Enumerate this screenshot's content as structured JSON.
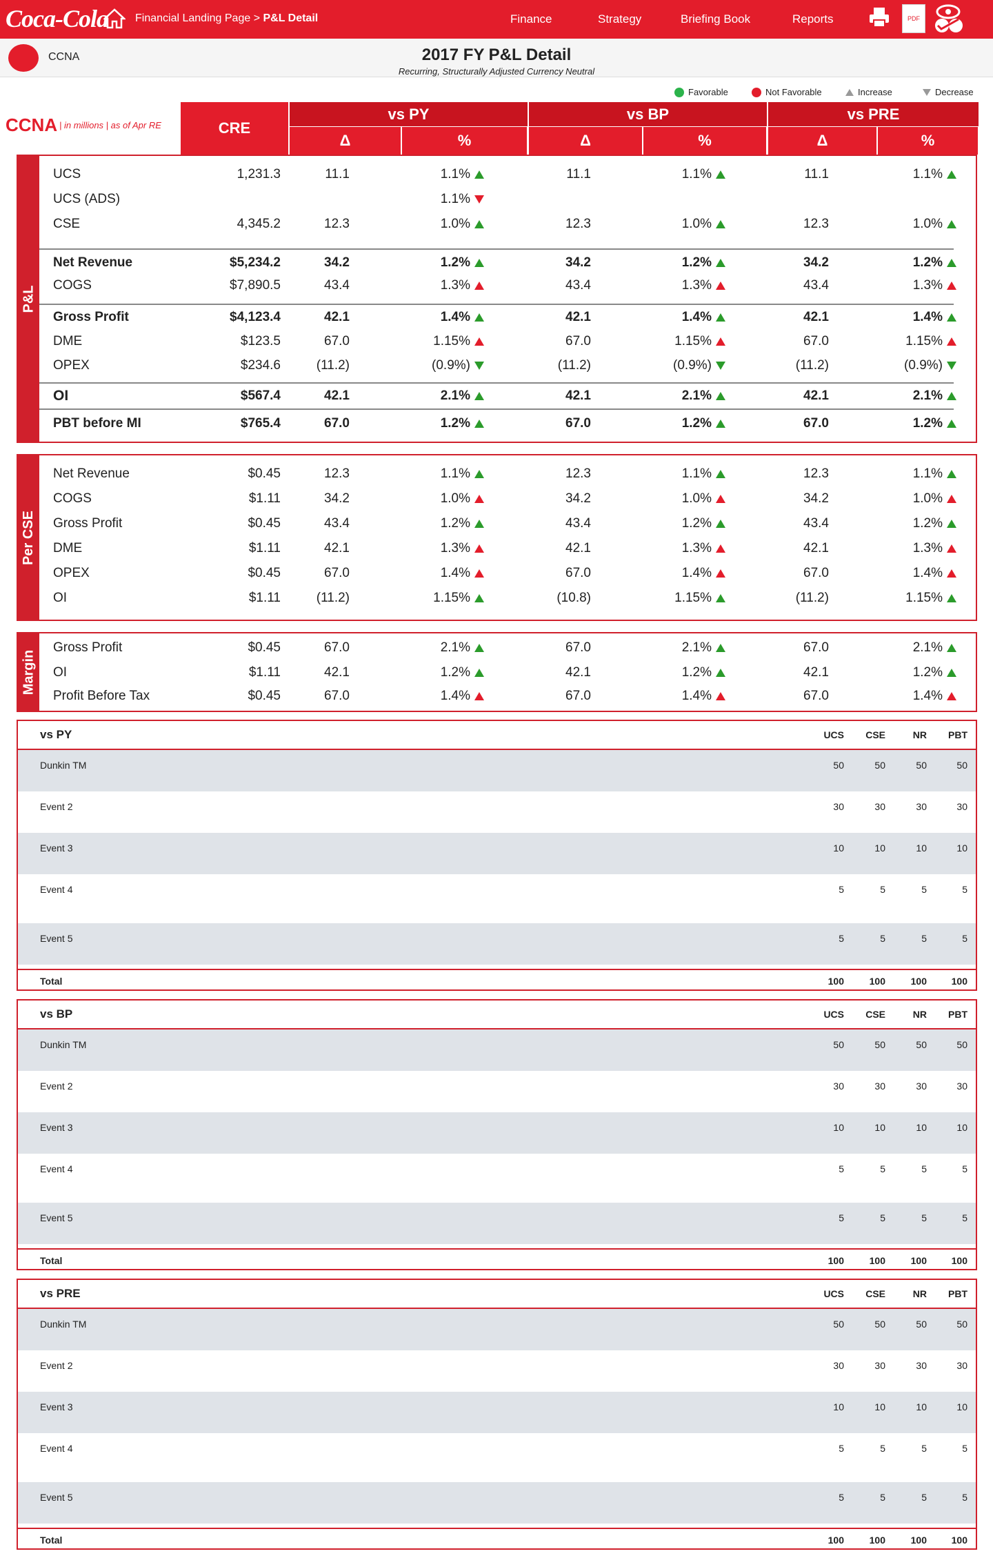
{
  "nav": {
    "brand": "Coca-Cola",
    "crumb_link": "Financial Landing Page",
    "crumb_sep": ">",
    "crumb_current": "P&L Detail",
    "menu": [
      "Finance",
      "Strategy",
      "Briefing Book",
      "Reports"
    ],
    "pdf_label": "PDF"
  },
  "page": {
    "bu": "CCNA",
    "title": "2017 FY P&L Detail",
    "subtitle": "Recurring, Structurally Adjusted Currency Neutral"
  },
  "legend": {
    "fav": "Favorable",
    "notfav": "Not Favorable",
    "inc": "Increase",
    "dec": "Decrease"
  },
  "colors": {
    "brand": "#e31d2b",
    "fav": "#2b9b2b",
    "notfav": "#e31d2b"
  },
  "header": {
    "entity": "CCNA",
    "note": "| in millions | as of Apr RE",
    "cre": "CRE",
    "groups": [
      "vs PY",
      "vs BP",
      "vs PRE"
    ],
    "delta": "Δ",
    "pct": "%"
  },
  "pl": {
    "tab": "P&L",
    "rows": [
      {
        "l": "UCS",
        "cre": "1,231.3",
        "v": [
          "11.1",
          "1.1%",
          "11.1",
          "1.1%",
          "11.1",
          "1.1%"
        ],
        "a": [
          "up-g",
          "up-g",
          "up-g"
        ]
      },
      {
        "l": "UCS (ADS)",
        "cre": "",
        "v": [
          "",
          "1.1%",
          "",
          "",
          "",
          ""
        ],
        "a": [
          "dn-r",
          "",
          ""
        ]
      },
      {
        "l": "CSE",
        "cre": "4,345.2",
        "v": [
          "12.3",
          "1.0%",
          "12.3",
          "1.0%",
          "12.3",
          "1.0%"
        ],
        "a": [
          "up-g",
          "up-g",
          "up-g"
        ]
      },
      {
        "l": "Net Revenue",
        "cre": "$5,234.2",
        "v": [
          "34.2",
          "1.2%",
          "34.2",
          "1.2%",
          "34.2",
          "1.2%"
        ],
        "a": [
          "up-g",
          "up-g",
          "up-g"
        ]
      },
      {
        "l": "COGS",
        "cre": "$7,890.5",
        "v": [
          "43.4",
          "1.3%",
          "43.4",
          "1.3%",
          "43.4",
          "1.3%"
        ],
        "a": [
          "up-r",
          "up-r",
          "up-r"
        ]
      },
      {
        "l": "Gross Profit",
        "cre": "$4,123.4",
        "v": [
          "42.1",
          "1.4%",
          "42.1",
          "1.4%",
          "42.1",
          "1.4%"
        ],
        "a": [
          "up-g",
          "up-g",
          "up-g"
        ]
      },
      {
        "l": "DME",
        "cre": "$123.5",
        "v": [
          "67.0",
          "1.15%",
          "67.0",
          "1.15%",
          "67.0",
          "1.15%"
        ],
        "a": [
          "up-r",
          "up-r",
          "up-r"
        ]
      },
      {
        "l": "OPEX",
        "cre": "$234.6",
        "v": [
          "(11.2)",
          "(0.9%)",
          "(11.2)",
          "(0.9%)",
          "(11.2)",
          "(0.9%)"
        ],
        "a": [
          "dn-g",
          "dn-g",
          "dn-g"
        ]
      },
      {
        "l": "OI",
        "cre": "$567.4",
        "v": [
          "42.1",
          "2.1%",
          "42.1",
          "2.1%",
          "42.1",
          "2.1%"
        ],
        "a": [
          "up-g",
          "up-g",
          "up-g"
        ]
      },
      {
        "l": "PBT before MI",
        "cre": "$765.4",
        "v": [
          "67.0",
          "1.2%",
          "67.0",
          "1.2%",
          "67.0",
          "1.2%"
        ],
        "a": [
          "up-g",
          "up-g",
          "up-g"
        ]
      }
    ]
  },
  "percse": {
    "tab": "Per CSE",
    "rows": [
      {
        "l": "Net Revenue",
        "cre": "$0.45",
        "v": [
          "12.3",
          "1.1%",
          "12.3",
          "1.1%",
          "12.3",
          "1.1%"
        ],
        "a": [
          "up-g",
          "up-g",
          "up-g"
        ]
      },
      {
        "l": "COGS",
        "cre": "$1.11",
        "v": [
          "34.2",
          "1.0%",
          "34.2",
          "1.0%",
          "34.2",
          "1.0%"
        ],
        "a": [
          "up-r",
          "up-r",
          "up-r"
        ]
      },
      {
        "l": "Gross Profit",
        "cre": "$0.45",
        "v": [
          "43.4",
          "1.2%",
          "43.4",
          "1.2%",
          "43.4",
          "1.2%"
        ],
        "a": [
          "up-g",
          "up-g",
          "up-g"
        ]
      },
      {
        "l": "DME",
        "cre": "$1.11",
        "v": [
          "42.1",
          "1.3%",
          "42.1",
          "1.3%",
          "42.1",
          "1.3%"
        ],
        "a": [
          "up-r",
          "up-r",
          "up-r"
        ]
      },
      {
        "l": "OPEX",
        "cre": "$0.45",
        "v": [
          "67.0",
          "1.4%",
          "67.0",
          "1.4%",
          "67.0",
          "1.4%"
        ],
        "a": [
          "up-r",
          "up-r",
          "up-r"
        ]
      },
      {
        "l": "OI",
        "cre": "$1.11",
        "v": [
          "(11.2)",
          "1.15%",
          "(10.8)",
          "1.15%",
          "(11.2)",
          "1.15%"
        ],
        "a": [
          "up-g",
          "up-g",
          "up-g"
        ]
      }
    ]
  },
  "margin": {
    "tab": "Margin",
    "rows": [
      {
        "l": "Gross Profit",
        "cre": "$0.45",
        "v": [
          "67.0",
          "2.1%",
          "67.0",
          "2.1%",
          "67.0",
          "2.1%"
        ],
        "a": [
          "up-g",
          "up-g",
          "up-g"
        ]
      },
      {
        "l": "OI",
        "cre": "$1.11",
        "v": [
          "42.1",
          "1.2%",
          "42.1",
          "1.2%",
          "42.1",
          "1.2%"
        ],
        "a": [
          "up-g",
          "up-g",
          "up-g"
        ]
      },
      {
        "l": "Profit Before Tax",
        "cre": "$0.45",
        "v": [
          "67.0",
          "1.4%",
          "67.0",
          "1.4%",
          "67.0",
          "1.4%"
        ],
        "a": [
          "up-r",
          "up-r",
          "up-r"
        ]
      }
    ]
  },
  "events": [
    {
      "title": "vs PY",
      "cols": [
        "UCS",
        "CSE",
        "NR",
        "PBT"
      ],
      "rows": [
        [
          "Dunkin TM",
          "50",
          "50",
          "50",
          "50"
        ],
        [
          "Event 2",
          "30",
          "30",
          "30",
          "30"
        ],
        [
          "Event 3",
          "10",
          "10",
          "10",
          "10"
        ],
        [
          "Event 4",
          "5",
          "5",
          "5",
          "5"
        ],
        [
          "Event 5",
          "5",
          "5",
          "5",
          "5"
        ]
      ],
      "total": [
        "Total",
        "100",
        "100",
        "100",
        "100"
      ]
    },
    {
      "title": "vs BP",
      "cols": [
        "UCS",
        "CSE",
        "NR",
        "PBT"
      ],
      "rows": [
        [
          "Dunkin TM",
          "50",
          "50",
          "50",
          "50"
        ],
        [
          "Event 2",
          "30",
          "30",
          "30",
          "30"
        ],
        [
          "Event 3",
          "10",
          "10",
          "10",
          "10"
        ],
        [
          "Event 4",
          "5",
          "5",
          "5",
          "5"
        ],
        [
          "Event 5",
          "5",
          "5",
          "5",
          "5"
        ]
      ],
      "total": [
        "Total",
        "100",
        "100",
        "100",
        "100"
      ]
    },
    {
      "title": "vs PRE",
      "cols": [
        "UCS",
        "CSE",
        "NR",
        "PBT"
      ],
      "rows": [
        [
          "Dunkin TM",
          "50",
          "50",
          "50",
          "50"
        ],
        [
          "Event 2",
          "30",
          "30",
          "30",
          "30"
        ],
        [
          "Event 3",
          "10",
          "10",
          "10",
          "10"
        ],
        [
          "Event 4",
          "5",
          "5",
          "5",
          "5"
        ],
        [
          "Event 5",
          "5",
          "5",
          "5",
          "5"
        ]
      ],
      "total": [
        "Total",
        "100",
        "100",
        "100",
        "100"
      ]
    }
  ]
}
